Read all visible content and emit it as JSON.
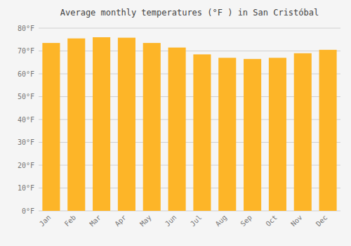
{
  "chart_data": {
    "type": "bar",
    "title": "Average monthly temperatures (°F ) in San Cristóbal",
    "categories": [
      "Jan",
      "Feb",
      "Mar",
      "Apr",
      "May",
      "Jun",
      "Jul",
      "Aug",
      "Sep",
      "Oct",
      "Nov",
      "Dec"
    ],
    "values": [
      73.5,
      75.5,
      76.0,
      75.8,
      73.5,
      71.5,
      68.5,
      67.0,
      66.5,
      67.0,
      69.0,
      70.5
    ],
    "color": "#FDB528",
    "ylim": [
      0,
      80
    ],
    "yticks": [
      {
        "value": 0,
        "label": "0°F"
      },
      {
        "value": 10,
        "label": "10°F"
      },
      {
        "value": 20,
        "label": "20°F"
      },
      {
        "value": 30,
        "label": "30°F"
      },
      {
        "value": 40,
        "label": "40°F"
      },
      {
        "value": 50,
        "label": "50°F"
      },
      {
        "value": 60,
        "label": "60°F"
      },
      {
        "value": 70,
        "label": "70°F"
      },
      {
        "value": 80,
        "label": "80°F"
      }
    ],
    "grid": true
  }
}
